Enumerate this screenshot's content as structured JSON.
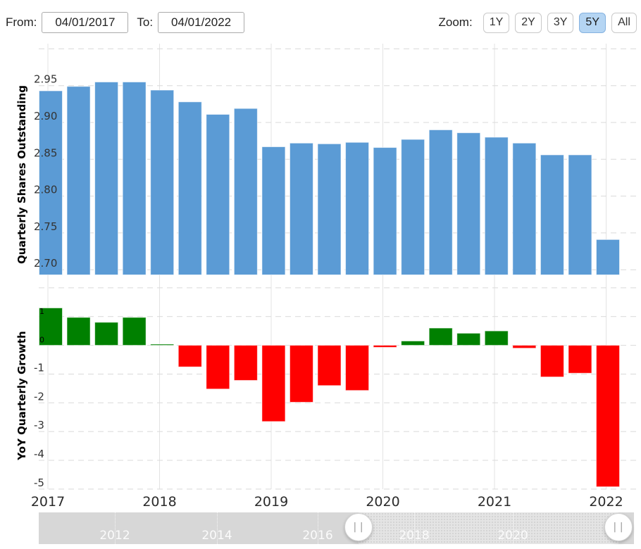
{
  "header": {
    "from_label": "From:",
    "from_value": "04/01/2017",
    "to_label": "To:",
    "to_value": "04/01/2022",
    "zoom_label": "Zoom:",
    "zoom_buttons": [
      {
        "label": "1Y",
        "active": false
      },
      {
        "label": "2Y",
        "active": false
      },
      {
        "label": "3Y",
        "active": false
      },
      {
        "label": "5Y",
        "active": true
      },
      {
        "label": "All",
        "active": false
      }
    ]
  },
  "chart_data": [
    {
      "type": "bar",
      "name": "quarterly-shares-outstanding",
      "ylabel": "Quarterly Shares Outstanding",
      "bar_color": "#5b9bd5",
      "x_unit": "quarter",
      "x_tick_labels": [
        "2017",
        "2018",
        "2019",
        "2020",
        "2021",
        "2022"
      ],
      "values": [
        2.943,
        2.949,
        2.955,
        2.955,
        2.944,
        2.928,
        2.911,
        2.919,
        2.867,
        2.872,
        2.871,
        2.873,
        2.866,
        2.877,
        2.89,
        2.886,
        2.88,
        2.872,
        2.856,
        2.856,
        2.741
      ],
      "yticks": [
        "2.95",
        "2.90",
        "2.85",
        "2.80",
        "2.75",
        "2.70"
      ],
      "ylim": [
        2.693,
        3.007
      ],
      "grid": "dashed"
    },
    {
      "type": "bar",
      "name": "yoy-quarterly-growth",
      "ylabel": "YoY Quarterly Growth",
      "positive_color": "#008000",
      "negative_color": "#ff0000",
      "x_unit": "quarter",
      "x_tick_labels": [
        "2017",
        "2018",
        "2019",
        "2020",
        "2021",
        "2022"
      ],
      "values": [
        1.3,
        0.97,
        0.8,
        0.97,
        0.04,
        -0.75,
        -1.52,
        -1.22,
        -2.65,
        -1.98,
        -1.4,
        -1.57,
        -0.07,
        0.15,
        0.6,
        0.42,
        0.5,
        -0.1,
        -1.1,
        -0.97,
        -4.92
      ],
      "yticks": [
        "1",
        "0",
        "-1",
        "-2",
        "-3",
        "-4",
        "-5"
      ],
      "ylim": [
        -5.1,
        2.1
      ],
      "grid": "dashed"
    }
  ],
  "navigator": {
    "year_labels": [
      "2012",
      "2014",
      "2016",
      "2018",
      "2020"
    ],
    "handle_glyph": "||"
  },
  "colors": {
    "bar_blue": "#5b9bd5",
    "bar_green": "#008000",
    "bar_red": "#ff0000",
    "gridline": "#d9d9d9",
    "year_gridline": "#e3e3e3",
    "tick_text": "#333333",
    "zoom_active_bg": "#b5d5f3"
  }
}
